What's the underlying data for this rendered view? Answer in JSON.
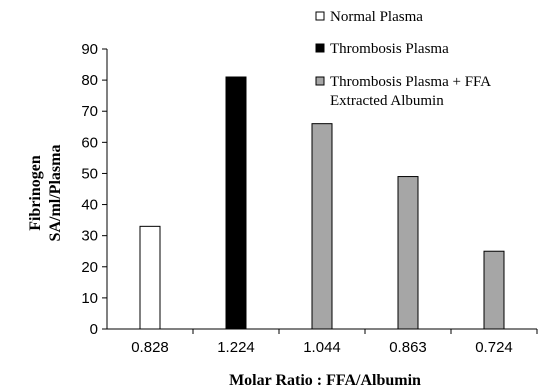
{
  "chart_data": {
    "type": "bar",
    "categories": [
      "0.828",
      "1.224",
      "1.044",
      "0.863",
      "0.724"
    ],
    "values": [
      33,
      81,
      66,
      49,
      25
    ],
    "series_index": [
      0,
      1,
      2,
      2,
      2
    ],
    "series": [
      {
        "name": "Normal Plasma",
        "color": "#ffffff"
      },
      {
        "name": "Thrombosis Plasma",
        "color": "#000000"
      },
      {
        "name": "Thrombosis Plasma + FFA",
        "name_line2": "Extracted Albumin",
        "color": "#a6a6a6"
      }
    ],
    "xlabel": "Molar Ratio : FFA/Albumin",
    "ylabel_line1": "Fibrinogen",
    "ylabel_line2": "SA/ml/Plasma",
    "ylim": [
      0,
      90
    ],
    "yticks": [
      "0",
      "10",
      "20",
      "30",
      "40",
      "50",
      "60",
      "70",
      "80",
      "90"
    ],
    "legend_position": "top-right",
    "grid": false
  }
}
